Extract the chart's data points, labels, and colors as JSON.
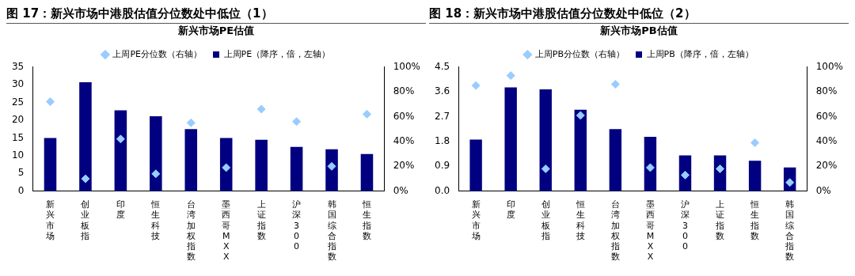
{
  "chart_data": [
    {
      "type": "bar",
      "title": "图 17：新兴市场中港股估值分位数处中低位（1）",
      "subtitle": "新兴市场PE估值",
      "categories": [
        "新兴市场",
        "创业板指",
        "印度",
        "恒生科技",
        "台湾加权指数",
        "墨西哥MXX",
        "上证指数",
        "沪深300",
        "韩国综合指数",
        "恒生指数"
      ],
      "series": [
        {
          "name": "上周PE（降序，倍，左轴）",
          "color": "#000080",
          "values": [
            15.0,
            30.7,
            22.8,
            21.1,
            17.5,
            15.0,
            14.5,
            12.5,
            11.8,
            10.5
          ]
        },
        {
          "name": "上周PE分位数（右轴）",
          "type": "scatter",
          "axis": "y2",
          "marker": "diamond",
          "color": "#99ccff",
          "x": [
            "新兴市场",
            "创业板指",
            "印度",
            "恒生科技",
            "台湾加权指数",
            "墨西哥MXX",
            "上证指数",
            "沪深300",
            "韩国综合指数",
            "恒生指数"
          ],
          "values": [
            72,
            10,
            42,
            14,
            55,
            19,
            66,
            56,
            20,
            62
          ]
        }
      ],
      "ylim": [
        0,
        35
      ],
      "yticks": [
        0,
        5,
        10,
        15,
        20,
        25,
        30,
        35
      ],
      "y2lim": [
        0,
        100
      ],
      "y2ticks": [
        {
          "value": 0,
          "label": "0%"
        },
        {
          "value": 20,
          "label": "20%"
        },
        {
          "value": 40,
          "label": "40%"
        },
        {
          "value": 60,
          "label": "60%"
        },
        {
          "value": 80,
          "label": "80%"
        },
        {
          "value": 100,
          "label": "100%"
        }
      ],
      "grid": false,
      "legend": "top"
    },
    {
      "type": "bar",
      "title": "图 18：新兴市场中港股估值分位数处中低位（2）",
      "subtitle": "新兴市场PB估值",
      "categories": [
        "新兴市场",
        "印度",
        "创业板指",
        "恒生科技",
        "台湾加权指数",
        "墨西哥MXX",
        "沪深300",
        "上证指数",
        "恒生指数",
        "韩国综合指数"
      ],
      "series": [
        {
          "name": "上周PB（降序，倍，左轴）",
          "color": "#000080",
          "values": [
            1.87,
            3.76,
            3.69,
            2.95,
            2.25,
            1.97,
            1.3,
            1.3,
            1.1,
            0.86
          ]
        },
        {
          "name": "上周PB分位数（右轴）",
          "type": "scatter",
          "axis": "y2",
          "marker": "diamond",
          "color": "#99ccff",
          "x": [
            "新兴市场",
            "印度",
            "创业板指",
            "恒生科技",
            "台湾加权指数",
            "墨西哥MXX",
            "沪深300",
            "上证指数",
            "恒生指数",
            "韩国综合指数"
          ],
          "values": [
            85,
            93,
            18,
            61,
            86,
            19,
            13,
            18,
            39,
            7
          ]
        }
      ],
      "ylim": [
        0,
        4.5
      ],
      "yticks": [
        {
          "value": 0,
          "label": "0.0"
        },
        0.9,
        1.8,
        2.7,
        3.6,
        4.5
      ],
      "y2lim": [
        0,
        100
      ],
      "y2ticks": [
        {
          "value": 0,
          "label": "0%"
        },
        {
          "value": 20,
          "label": "20%"
        },
        {
          "value": 40,
          "label": "40%"
        },
        {
          "value": 60,
          "label": "60%"
        },
        {
          "value": 80,
          "label": "80%"
        },
        {
          "value": 100,
          "label": "100%"
        }
      ],
      "grid": false,
      "legend": "top"
    }
  ]
}
